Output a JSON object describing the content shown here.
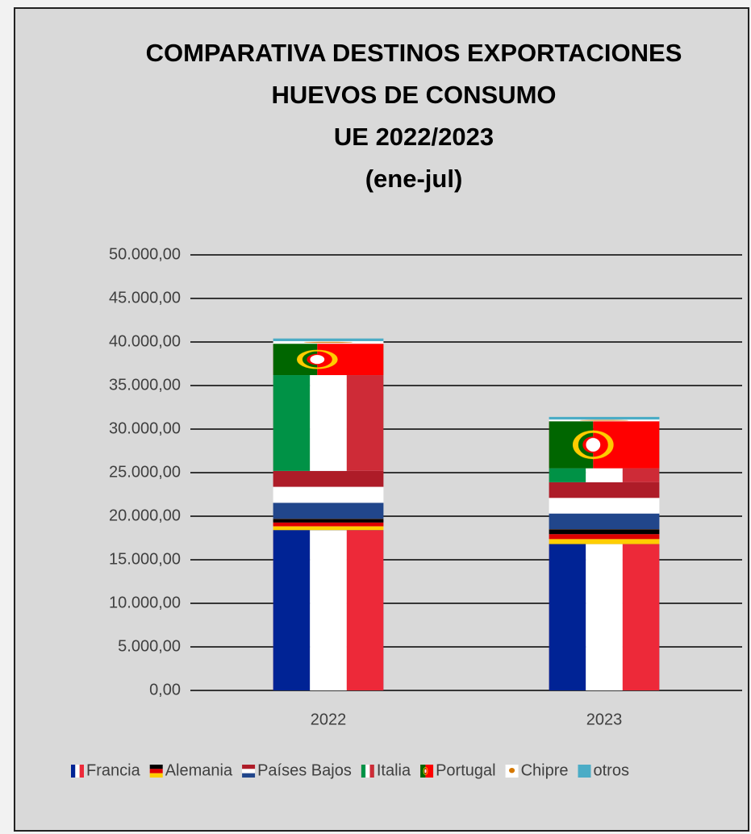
{
  "chart_data": {
    "type": "stacked_bar",
    "title": [
      "COMPARATIVA DESTINOS EXPORTACIONES",
      "HUEVOS DE CONSUMO",
      "UE 2022/2023",
      "(ene-jul)"
    ],
    "categories": [
      "2022",
      "2023"
    ],
    "series": [
      {
        "name": "Francia",
        "flag": {
          "stripes": "vertical",
          "colors": [
            "#002395",
            "#ffffff",
            "#ed2939"
          ]
        },
        "values": [
          18400,
          16800
        ]
      },
      {
        "name": "Alemania",
        "flag": {
          "stripes": "horizontal",
          "colors": [
            "#000000",
            "#dd0000",
            "#ffce00"
          ]
        },
        "values": [
          1300,
          1700
        ]
      },
      {
        "name": "Países Bajos",
        "flag": {
          "stripes": "horizontal",
          "colors": [
            "#ae1c28",
            "#ffffff",
            "#21468b"
          ]
        },
        "values": [
          5500,
          5400
        ]
      },
      {
        "name": "Italia",
        "flag": {
          "stripes": "vertical",
          "colors": [
            "#009246",
            "#ffffff",
            "#ce2b37"
          ]
        },
        "values": [
          11000,
          1600
        ]
      },
      {
        "name": "Portugal",
        "flag": {
          "stripes": "portugal",
          "colors": [
            "#006600",
            "#ff0000",
            "#ffcc00"
          ]
        },
        "values": [
          3600,
          5400
        ]
      },
      {
        "name": "Chipre",
        "flag": {
          "stripes": "cyprus",
          "colors": [
            "#ffffff",
            "#d57800"
          ]
        },
        "values": [
          300,
          200
        ]
      },
      {
        "name": "otros",
        "color": "#4bacc6",
        "values": [
          300,
          300
        ]
      }
    ],
    "ylim": [
      0,
      50000
    ],
    "yticks": [
      {
        "value": 0,
        "label": "0,00"
      },
      {
        "value": 5000,
        "label": "5.000,00"
      },
      {
        "value": 10000,
        "label": "10.000,00"
      },
      {
        "value": 15000,
        "label": "15.000,00"
      },
      {
        "value": 20000,
        "label": "20.000,00"
      },
      {
        "value": 25000,
        "label": "25.000,00"
      },
      {
        "value": 30000,
        "label": "30.000,00"
      },
      {
        "value": 35000,
        "label": "35.000,00"
      },
      {
        "value": 40000,
        "label": "40.000,00"
      },
      {
        "value": 45000,
        "label": "45.000,00"
      },
      {
        "value": 50000,
        "label": "50.000,00"
      }
    ],
    "grid": true,
    "legend": "bottom"
  }
}
